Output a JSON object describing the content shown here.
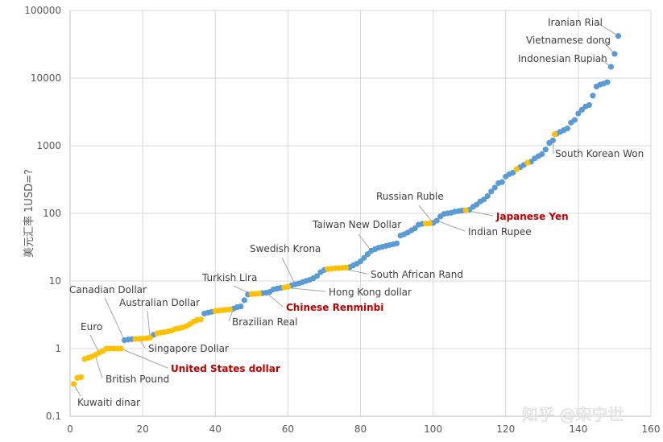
{
  "chart_data": {
    "type": "scatter",
    "ylabel": "美元汇率 1USD=?",
    "xlim": [
      0,
      160
    ],
    "ylim": [
      0.1,
      100000
    ],
    "y_scale": "log",
    "x_ticks": [
      0,
      20,
      40,
      60,
      80,
      100,
      120,
      140,
      160
    ],
    "y_ticks": [
      "0.1",
      "1",
      "10",
      "100",
      "1000",
      "10000",
      "100000"
    ],
    "grid": true,
    "colors": {
      "default": "#5b9bd5",
      "highlight": "#ffc000",
      "label_highlight": "#c00000"
    },
    "series": [
      {
        "color": "#5b9bd5",
        "points": [
          [
            15,
            1.33
          ],
          [
            16,
            1.36
          ],
          [
            17,
            1.38
          ],
          [
            23,
            1.6
          ],
          [
            37,
            3.3
          ],
          [
            38,
            3.4
          ],
          [
            39,
            3.5
          ],
          [
            45,
            3.9
          ],
          [
            46,
            4.1
          ],
          [
            47,
            4.2
          ],
          [
            48,
            5.2
          ],
          [
            49,
            6.3
          ],
          [
            53,
            6.6
          ],
          [
            54,
            6.7
          ],
          [
            55,
            6.9
          ],
          [
            56,
            7.5
          ],
          [
            57,
            7.7
          ],
          [
            58,
            7.9
          ],
          [
            61,
            8.6
          ],
          [
            62,
            8.9
          ],
          [
            63,
            9.2
          ],
          [
            64,
            9.6
          ],
          [
            65,
            10
          ],
          [
            66,
            10.4
          ],
          [
            67,
            11
          ],
          [
            68,
            11.8
          ],
          [
            69,
            13.5
          ],
          [
            70,
            14.5
          ],
          [
            77,
            16
          ],
          [
            78,
            17
          ],
          [
            79,
            18
          ],
          [
            80,
            19.5
          ],
          [
            81,
            22
          ],
          [
            82,
            25
          ],
          [
            83,
            28
          ],
          [
            84,
            29.5
          ],
          [
            85,
            31
          ],
          [
            86,
            32
          ],
          [
            87,
            33
          ],
          [
            88,
            34
          ],
          [
            89,
            35
          ],
          [
            90,
            36
          ],
          [
            91,
            47
          ],
          [
            92,
            49
          ],
          [
            93,
            52
          ],
          [
            94,
            56
          ],
          [
            95,
            60
          ],
          [
            96,
            68
          ],
          [
            97,
            70
          ],
          [
            100,
            72
          ],
          [
            101,
            78
          ],
          [
            102,
            90
          ],
          [
            103,
            98
          ],
          [
            104,
            100
          ],
          [
            105,
            102
          ],
          [
            106,
            106
          ],
          [
            107,
            108
          ],
          [
            108,
            110
          ],
          [
            110,
            113
          ],
          [
            111,
            125
          ],
          [
            112,
            135
          ],
          [
            113,
            150
          ],
          [
            114,
            160
          ],
          [
            115,
            180
          ],
          [
            116,
            210
          ],
          [
            117,
            240
          ],
          [
            118,
            280
          ],
          [
            119,
            290
          ],
          [
            120,
            350
          ],
          [
            121,
            380
          ],
          [
            122,
            400
          ],
          [
            124,
            480
          ],
          [
            125,
            520
          ],
          [
            127,
            580
          ],
          [
            128,
            650
          ],
          [
            129,
            700
          ],
          [
            130,
            750
          ],
          [
            131,
            880
          ],
          [
            132,
            1100
          ],
          [
            133,
            1200
          ],
          [
            134,
            1500
          ],
          [
            135,
            1600
          ],
          [
            136,
            1700
          ],
          [
            137,
            1800
          ],
          [
            138,
            2200
          ],
          [
            139,
            2400
          ],
          [
            140,
            3000
          ],
          [
            141,
            3400
          ],
          [
            142,
            3800
          ],
          [
            143,
            4000
          ],
          [
            144,
            5500
          ],
          [
            145,
            7500
          ],
          [
            146,
            8000
          ],
          [
            147,
            8300
          ],
          [
            148,
            8700
          ],
          [
            149,
            14700
          ],
          [
            150,
            22800
          ],
          [
            151,
            42000
          ]
        ]
      },
      {
        "color": "#ffc000",
        "points": [
          [
            1,
            0.3
          ],
          [
            2,
            0.37
          ],
          [
            3,
            0.38
          ],
          [
            4,
            0.7
          ],
          [
            5,
            0.73
          ],
          [
            6,
            0.76
          ],
          [
            7,
            0.81
          ],
          [
            8,
            0.87
          ],
          [
            9,
            0.92
          ],
          [
            10,
            1
          ],
          [
            11,
            1
          ],
          [
            12,
            1
          ],
          [
            13,
            1
          ],
          [
            14,
            1
          ],
          [
            18,
            1.39
          ],
          [
            19,
            1.4
          ],
          [
            20,
            1.41
          ],
          [
            21,
            1.42
          ],
          [
            22,
            1.45
          ],
          [
            24,
            1.68
          ],
          [
            25,
            1.72
          ],
          [
            26,
            1.75
          ],
          [
            27,
            1.8
          ],
          [
            28,
            1.85
          ],
          [
            29,
            1.95
          ],
          [
            30,
            2
          ],
          [
            31,
            2.05
          ],
          [
            32,
            2.15
          ],
          [
            33,
            2.3
          ],
          [
            34,
            2.5
          ],
          [
            35,
            2.65
          ],
          [
            36,
            2.7
          ],
          [
            40,
            3.6
          ],
          [
            41,
            3.65
          ],
          [
            42,
            3.7
          ],
          [
            43,
            3.75
          ],
          [
            44,
            3.8
          ],
          [
            50,
            6.4
          ],
          [
            51,
            6.45
          ],
          [
            52,
            6.5
          ],
          [
            59,
            8
          ],
          [
            60,
            8.2
          ],
          [
            71,
            15
          ],
          [
            72,
            15.2
          ],
          [
            73,
            15.4
          ],
          [
            74,
            15.5
          ],
          [
            75,
            15.6
          ],
          [
            76,
            15.8
          ],
          [
            98,
            70.5
          ],
          [
            99,
            71
          ],
          [
            109,
            111
          ],
          [
            123,
            450
          ],
          [
            126,
            560
          ],
          [
            133.5,
            1480
          ]
        ]
      }
    ],
    "annotations": [
      {
        "text": "Iranian Rial",
        "x": 151,
        "y": 42000,
        "highlight": false
      },
      {
        "text": "Vietnamese dong",
        "x": 150,
        "y": 22800,
        "highlight": false
      },
      {
        "text": "Indonesian Rupiah",
        "x": 149,
        "y": 14700,
        "highlight": false
      },
      {
        "text": "South Korean Won",
        "x": 133,
        "y": 1200,
        "highlight": false
      },
      {
        "text": "Japanese Yen",
        "x": 109,
        "y": 111,
        "highlight": true
      },
      {
        "text": "Russian Ruble",
        "x": 100,
        "y": 72,
        "highlight": false
      },
      {
        "text": "Indian Rupee",
        "x": 101,
        "y": 78,
        "highlight": false
      },
      {
        "text": "Taiwan New Dollar",
        "x": 83,
        "y": 28,
        "highlight": false
      },
      {
        "text": "South African Rand",
        "x": 74,
        "y": 15.5,
        "highlight": false
      },
      {
        "text": "Swedish Krona",
        "x": 62,
        "y": 8.9,
        "highlight": false
      },
      {
        "text": "Hong Kong dollar",
        "x": 59,
        "y": 8,
        "highlight": false
      },
      {
        "text": "Turkish Lira",
        "x": 50,
        "y": 6.4,
        "highlight": false
      },
      {
        "text": "Chinese Renminbi",
        "x": 54,
        "y": 6.7,
        "highlight": true
      },
      {
        "text": "Brazilian Real",
        "x": 45,
        "y": 3.9,
        "highlight": false
      },
      {
        "text": "Australian Dollar",
        "x": 22,
        "y": 1.45,
        "highlight": false
      },
      {
        "text": "Canadian Dollar",
        "x": 15,
        "y": 1.33,
        "highlight": false
      },
      {
        "text": "Singapore Dollar",
        "x": 19,
        "y": 1.4,
        "highlight": false
      },
      {
        "text": "Euro",
        "x": 8,
        "y": 0.87,
        "highlight": false
      },
      {
        "text": "United States dollar",
        "x": 14,
        "y": 1,
        "highlight": true
      },
      {
        "text": "British Pound",
        "x": 7,
        "y": 0.76,
        "highlight": false
      },
      {
        "text": "Kuwaiti dinar",
        "x": 1,
        "y": 0.3,
        "highlight": false
      }
    ]
  },
  "watermark": "知乎 @宋宁世"
}
